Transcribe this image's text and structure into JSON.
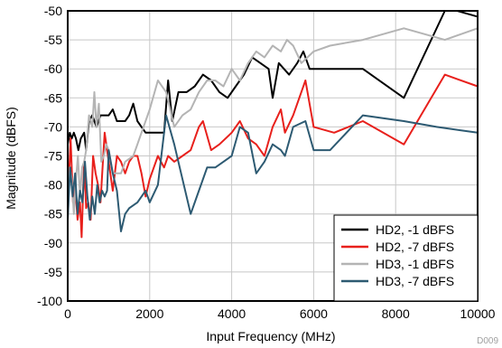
{
  "chart_data": {
    "type": "line",
    "title": "",
    "xlabel": "Input Frequency (MHz)",
    "ylabel": "Magnitude (dBFS)",
    "xlim": [
      0,
      10000
    ],
    "ylim": [
      -100,
      -50
    ],
    "x_ticks": [
      0,
      2000,
      4000,
      6000,
      8000,
      10000
    ],
    "y_ticks": [
      -100,
      -95,
      -90,
      -85,
      -80,
      -75,
      -70,
      -65,
      -60,
      -55,
      -50
    ],
    "grid": true,
    "legend_position": "bottom-right",
    "watermark": "D009",
    "series": [
      {
        "name": "HD2, -1 dBFS",
        "color": "#000000",
        "points": [
          [
            0,
            -73
          ],
          [
            50,
            -71
          ],
          [
            100,
            -72
          ],
          [
            150,
            -71
          ],
          [
            200,
            -72
          ],
          [
            260,
            -74
          ],
          [
            320,
            -72
          ],
          [
            400,
            -71
          ],
          [
            450,
            -74
          ],
          [
            520,
            -69
          ],
          [
            600,
            -68
          ],
          [
            700,
            -70
          ],
          [
            800,
            -68
          ],
          [
            900,
            -68
          ],
          [
            1000,
            -68
          ],
          [
            1100,
            -67
          ],
          [
            1200,
            -69
          ],
          [
            1400,
            -69
          ],
          [
            1500,
            -68
          ],
          [
            1600,
            -66
          ],
          [
            1700,
            -69
          ],
          [
            1800,
            -70
          ],
          [
            1900,
            -71
          ],
          [
            2000,
            -71
          ],
          [
            2100,
            -71
          ],
          [
            2200,
            -71
          ],
          [
            2350,
            -71
          ],
          [
            2450,
            -62
          ],
          [
            2550,
            -69
          ],
          [
            2700,
            -64
          ],
          [
            2900,
            -64
          ],
          [
            3100,
            -63
          ],
          [
            3300,
            -61
          ],
          [
            3500,
            -62
          ],
          [
            3700,
            -64
          ],
          [
            3900,
            -65
          ],
          [
            4100,
            -63
          ],
          [
            4300,
            -61
          ],
          [
            4500,
            -58
          ],
          [
            4700,
            -59
          ],
          [
            4900,
            -60
          ],
          [
            5000,
            -65
          ],
          [
            5150,
            -59
          ],
          [
            5400,
            -61
          ],
          [
            5600,
            -59
          ],
          [
            5750,
            -57
          ],
          [
            5900,
            -60
          ],
          [
            6000,
            -60
          ],
          [
            7200,
            -60
          ],
          [
            8200,
            -65
          ],
          [
            9200,
            -50
          ],
          [
            9500,
            -50
          ],
          [
            10000,
            -51
          ]
        ]
      },
      {
        "name": "HD2, -7 dBFS",
        "color": "#e8201c",
        "points": [
          [
            0,
            -84
          ],
          [
            70,
            -72
          ],
          [
            130,
            -83
          ],
          [
            180,
            -80
          ],
          [
            240,
            -86
          ],
          [
            300,
            -83
          ],
          [
            340,
            -89
          ],
          [
            400,
            -76
          ],
          [
            450,
            -84
          ],
          [
            500,
            -83
          ],
          [
            560,
            -86
          ],
          [
            620,
            -75
          ],
          [
            680,
            -78
          ],
          [
            740,
            -80
          ],
          [
            800,
            -83
          ],
          [
            900,
            -71
          ],
          [
            1000,
            -76
          ],
          [
            1100,
            -81
          ],
          [
            1200,
            -75
          ],
          [
            1300,
            -76
          ],
          [
            1400,
            -78
          ],
          [
            1500,
            -76
          ],
          [
            1600,
            -75
          ],
          [
            1700,
            -75
          ],
          [
            1800,
            -78
          ],
          [
            1900,
            -82
          ],
          [
            2000,
            -79
          ],
          [
            2200,
            -75
          ],
          [
            2350,
            -77
          ],
          [
            2450,
            -75
          ],
          [
            2600,
            -76
          ],
          [
            2800,
            -75
          ],
          [
            3000,
            -74
          ],
          [
            3200,
            -70
          ],
          [
            3300,
            -69
          ],
          [
            3500,
            -74
          ],
          [
            3700,
            -73
          ],
          [
            4000,
            -71
          ],
          [
            4200,
            -69
          ],
          [
            4400,
            -72
          ],
          [
            4600,
            -73
          ],
          [
            4800,
            -75
          ],
          [
            5000,
            -70
          ],
          [
            5200,
            -67
          ],
          [
            5300,
            -71
          ],
          [
            5500,
            -68
          ],
          [
            5800,
            -62
          ],
          [
            6000,
            -70
          ],
          [
            6500,
            -71
          ],
          [
            7200,
            -69
          ],
          [
            8200,
            -73
          ],
          [
            9200,
            -61
          ],
          [
            10000,
            -63
          ]
        ]
      },
      {
        "name": "HD3, -1 dBFS",
        "color": "#b4b4b4",
        "points": [
          [
            0,
            -86
          ],
          [
            50,
            -77
          ],
          [
            100,
            -79
          ],
          [
            150,
            -85
          ],
          [
            200,
            -79
          ],
          [
            250,
            -75
          ],
          [
            300,
            -82
          ],
          [
            350,
            -77
          ],
          [
            400,
            -76
          ],
          [
            450,
            -74
          ],
          [
            520,
            -68
          ],
          [
            600,
            -70
          ],
          [
            650,
            -64
          ],
          [
            700,
            -70
          ],
          [
            760,
            -66
          ],
          [
            820,
            -76
          ],
          [
            880,
            -75
          ],
          [
            940,
            -73
          ],
          [
            1000,
            -74
          ],
          [
            1100,
            -78
          ],
          [
            1200,
            -78
          ],
          [
            1300,
            -78
          ],
          [
            1400,
            -76
          ],
          [
            1600,
            -75
          ],
          [
            1700,
            -73
          ],
          [
            1800,
            -71
          ],
          [
            2000,
            -67
          ],
          [
            2200,
            -62
          ],
          [
            2400,
            -64
          ],
          [
            2600,
            -70
          ],
          [
            2800,
            -68
          ],
          [
            3000,
            -67
          ],
          [
            3200,
            -64
          ],
          [
            3400,
            -62
          ],
          [
            3600,
            -62
          ],
          [
            3800,
            -63
          ],
          [
            4000,
            -60
          ],
          [
            4200,
            -62
          ],
          [
            4400,
            -59
          ],
          [
            4600,
            -57
          ],
          [
            4800,
            -58
          ],
          [
            5000,
            -56
          ],
          [
            5200,
            -57
          ],
          [
            5350,
            -55
          ],
          [
            5500,
            -56
          ],
          [
            5700,
            -59
          ],
          [
            6000,
            -57
          ],
          [
            6400,
            -56
          ],
          [
            7200,
            -55
          ],
          [
            8200,
            -53
          ],
          [
            9200,
            -55
          ],
          [
            10000,
            -53
          ]
        ]
      },
      {
        "name": "HD3, -7 dBFS",
        "color": "#2d5a72",
        "points": [
          [
            0,
            -86
          ],
          [
            60,
            -77
          ],
          [
            120,
            -82
          ],
          [
            180,
            -78
          ],
          [
            240,
            -85
          ],
          [
            300,
            -81
          ],
          [
            360,
            -83
          ],
          [
            420,
            -76
          ],
          [
            480,
            -82
          ],
          [
            540,
            -86
          ],
          [
            600,
            -82
          ],
          [
            660,
            -85
          ],
          [
            720,
            -80
          ],
          [
            780,
            -83
          ],
          [
            840,
            -81
          ],
          [
            900,
            -82
          ],
          [
            960,
            -81
          ],
          [
            1000,
            -74
          ],
          [
            1100,
            -78
          ],
          [
            1200,
            -81
          ],
          [
            1300,
            -88
          ],
          [
            1400,
            -85
          ],
          [
            1500,
            -84
          ],
          [
            1700,
            -83
          ],
          [
            1900,
            -81
          ],
          [
            2000,
            -83
          ],
          [
            2200,
            -80
          ],
          [
            2400,
            -68
          ],
          [
            2600,
            -73
          ],
          [
            2800,
            -79
          ],
          [
            3000,
            -85
          ],
          [
            3200,
            -81
          ],
          [
            3400,
            -77
          ],
          [
            3600,
            -77
          ],
          [
            3800,
            -76
          ],
          [
            4000,
            -75
          ],
          [
            4200,
            -70
          ],
          [
            4400,
            -71
          ],
          [
            4600,
            -78
          ],
          [
            4800,
            -76
          ],
          [
            5000,
            -73
          ],
          [
            5200,
            -74
          ],
          [
            5300,
            -75
          ],
          [
            5500,
            -70
          ],
          [
            5800,
            -69
          ],
          [
            6000,
            -74
          ],
          [
            6400,
            -74
          ],
          [
            7200,
            -68
          ],
          [
            8200,
            -69
          ],
          [
            9000,
            -70
          ],
          [
            10000,
            -71
          ]
        ]
      }
    ]
  }
}
